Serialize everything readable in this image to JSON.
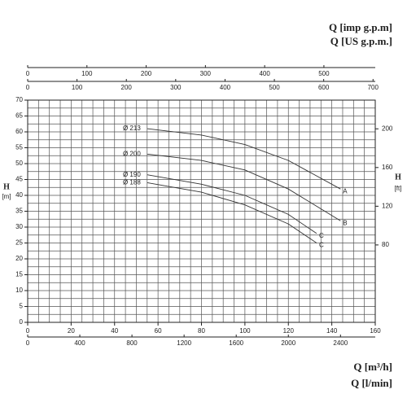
{
  "chart_data": {
    "type": "line",
    "x_label": "Q [m³/h]",
    "y_label": "H",
    "y_unit": "[m]",
    "y2_label": "H",
    "y2_unit": "[ft]",
    "xlim": [
      0,
      160
    ],
    "xticks": [
      0,
      20,
      40,
      60,
      80,
      100,
      120,
      140,
      160
    ],
    "ylim": [
      0,
      70
    ],
    "yticks": [
      0,
      5,
      10,
      15,
      20,
      25,
      30,
      35,
      40,
      45,
      50,
      55,
      60,
      65,
      70
    ],
    "y2lim": [
      0,
      229.66
    ],
    "y2ticks": [
      80,
      120,
      160,
      200
    ],
    "grid": {
      "x": 5,
      "y": 2.5
    },
    "color": "#333333",
    "extra_x_axes": [
      {
        "label": "Q [l/min]",
        "position": "bottom",
        "xlim": [
          0,
          2666.67
        ],
        "xticks": [
          0,
          400,
          800,
          1200,
          1600,
          2000,
          2400
        ]
      },
      {
        "label": "Q [imp g.p.m]",
        "position": "top",
        "xlim": [
          0,
          586.67
        ],
        "xticks": [
          0,
          100,
          200,
          300,
          400,
          500
        ]
      },
      {
        "label": "Q [US g.p.m.]",
        "position": "top",
        "xlim": [
          0,
          704.5
        ],
        "xticks": [
          0,
          100,
          200,
          300,
          400,
          500,
          600,
          700
        ]
      }
    ],
    "series": [
      {
        "name": "Ø 213",
        "end_label": "A",
        "x": [
          55,
          80,
          100,
          120,
          144
        ],
        "values": [
          61,
          59,
          56,
          51,
          42
        ]
      },
      {
        "name": "Ø 200",
        "end_label": "B",
        "x": [
          55,
          80,
          100,
          120,
          144
        ],
        "values": [
          53,
          51,
          48,
          42,
          32
        ]
      },
      {
        "name": "Ø 190",
        "end_label": "C",
        "x": [
          55,
          80,
          100,
          120,
          133
        ],
        "values": [
          46.5,
          43.5,
          40,
          34,
          28
        ]
      },
      {
        "name": "Ø 188",
        "end_label": "C",
        "x": [
          55,
          80,
          100,
          120,
          133
        ],
        "values": [
          44,
          41,
          37,
          31,
          25
        ]
      }
    ]
  }
}
